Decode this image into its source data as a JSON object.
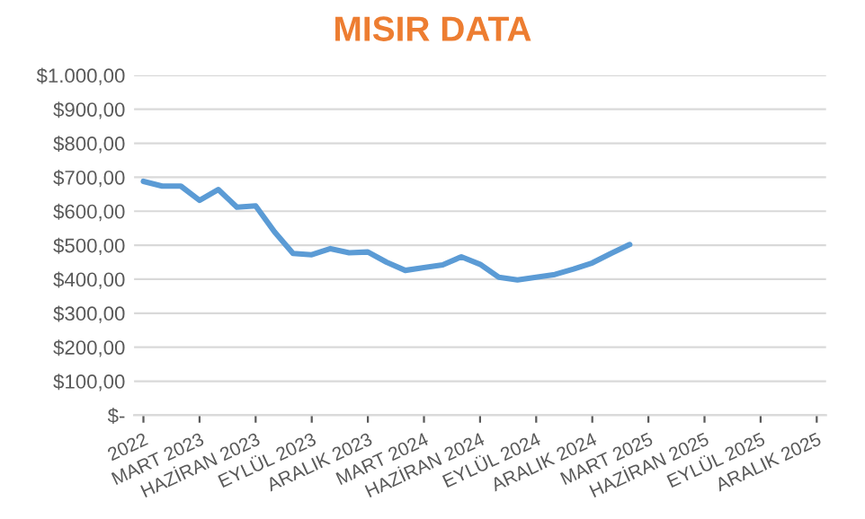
{
  "chart_data": {
    "type": "line",
    "title": "MISIR DATA",
    "categories": [
      "2022",
      null,
      null,
      "MART 2023",
      null,
      null,
      "HAZİRAN 2023",
      null,
      null,
      "EYLÜL 2023",
      null,
      null,
      "ARALIK 2023",
      null,
      null,
      "MART 2024",
      null,
      null,
      "HAZİRAN 2024",
      null,
      null,
      "EYLÜL 2024",
      null,
      null,
      "ARALIK 2024",
      null,
      null,
      "MART 2025",
      null,
      null,
      "HAZİRAN 2025",
      null,
      null,
      "EYLÜL 2025",
      null,
      null,
      "ARALIK 2025"
    ],
    "series": [
      {
        "color": "#5b9bd5",
        "values": [
          688,
          674,
          674,
          632,
          664,
          612,
          616,
          540,
          476,
          472,
          490,
          478,
          480,
          450,
          426,
          434,
          442,
          466,
          444,
          406,
          398,
          406,
          414,
          430,
          448,
          476,
          502,
          null,
          null,
          null,
          null,
          null,
          null,
          null,
          null,
          null,
          null
        ]
      }
    ],
    "ylim": [
      0,
      1000
    ],
    "yticks": [
      {
        "value": 0,
        "label": "$-"
      },
      {
        "value": 100,
        "label": "$100,00"
      },
      {
        "value": 200,
        "label": "$200,00"
      },
      {
        "value": 300,
        "label": "$300,00"
      },
      {
        "value": 400,
        "label": "$400,00"
      },
      {
        "value": 500,
        "label": "$500,00"
      },
      {
        "value": 600,
        "label": "$600,00"
      },
      {
        "value": 700,
        "label": "$700,00"
      },
      {
        "value": 800,
        "label": "$800,00"
      },
      {
        "value": 900,
        "label": "$900,00"
      },
      {
        "value": 1000,
        "label": "$1.000,00"
      }
    ],
    "grid": "y"
  }
}
